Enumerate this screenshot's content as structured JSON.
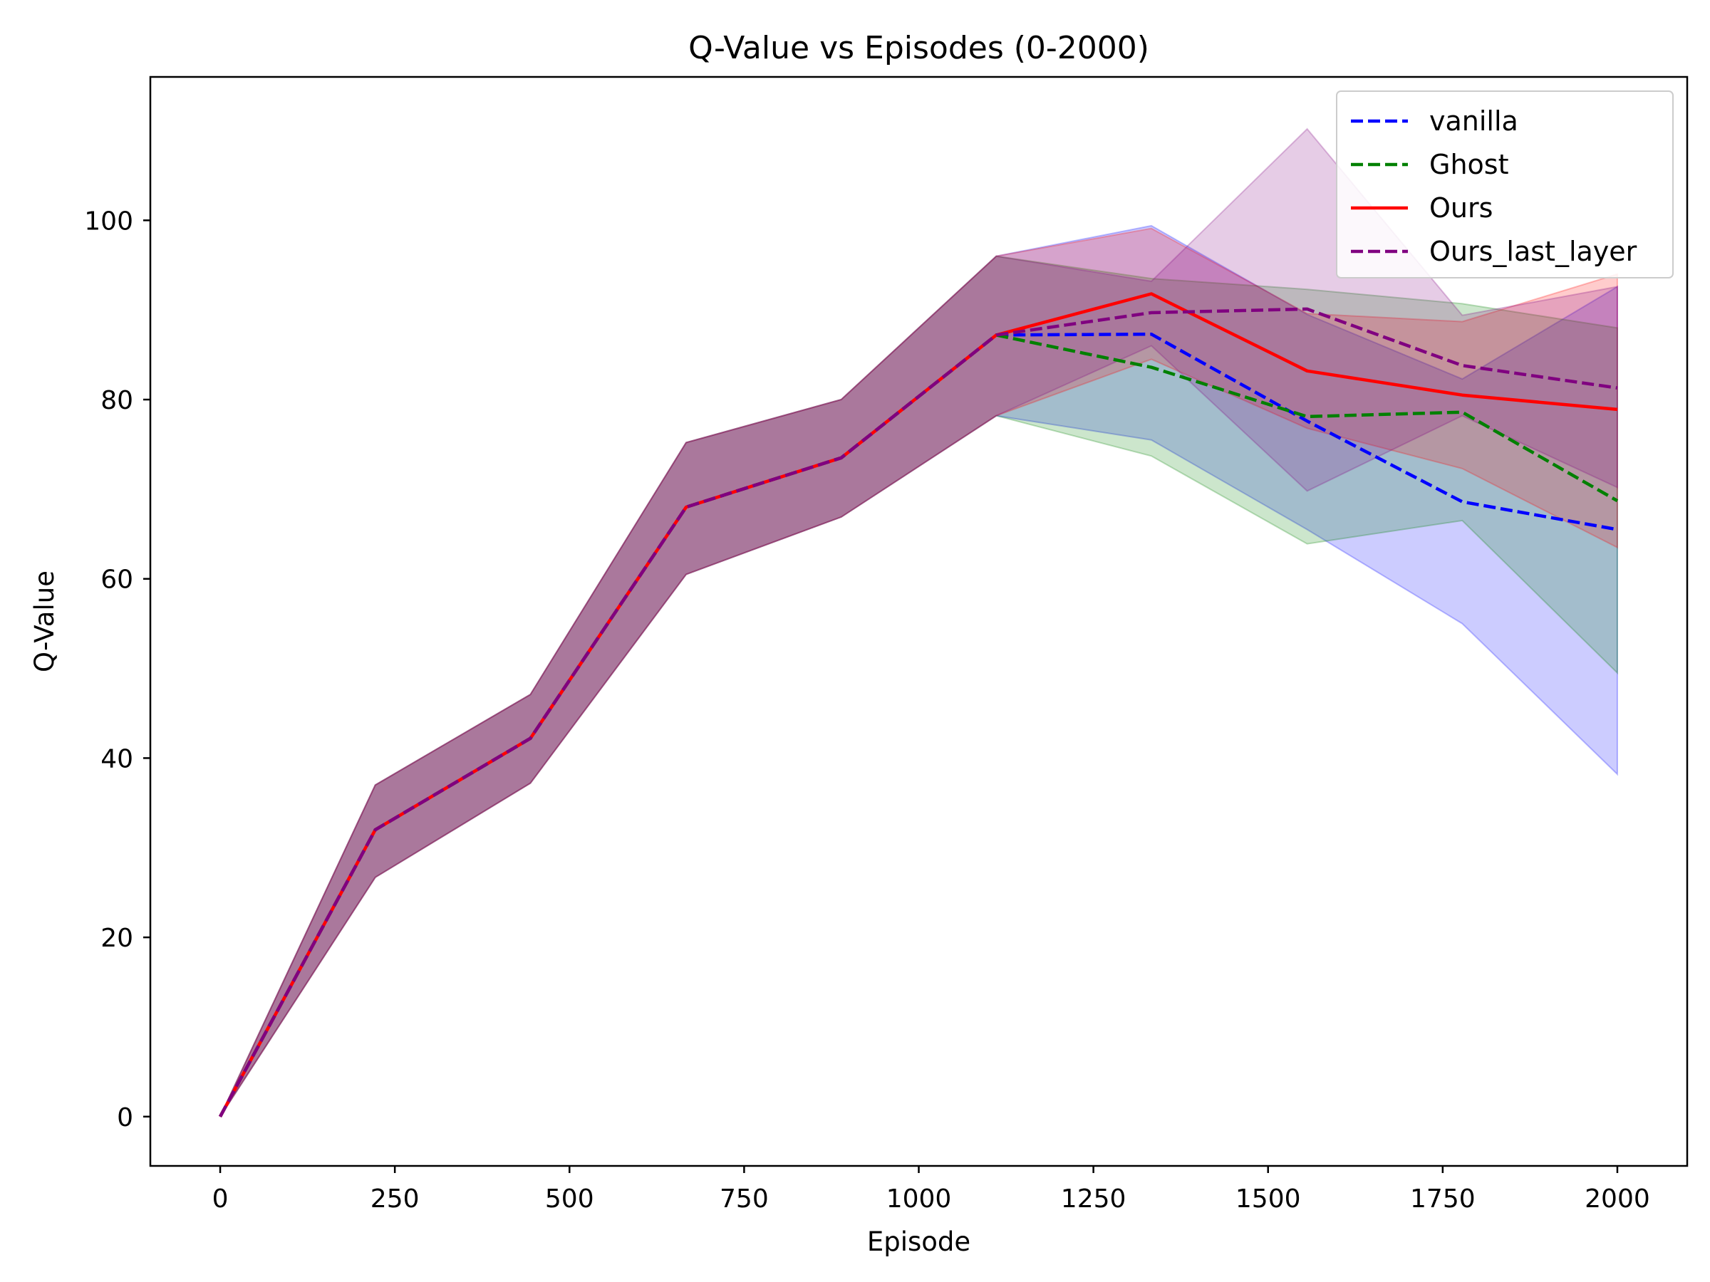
{
  "chart_data": {
    "type": "line",
    "title": "Q-Value vs Episodes (0-2000)",
    "xlabel": "Episode",
    "ylabel": "Q-Value",
    "xlim": [
      -100,
      2100
    ],
    "ylim": [
      -5.5,
      116
    ],
    "xticks": [
      0,
      250,
      500,
      750,
      1000,
      1250,
      1500,
      1750,
      2000
    ],
    "yticks": [
      0,
      20,
      40,
      60,
      80,
      100
    ],
    "grid": false,
    "legend_position": "top-right",
    "x": [
      0,
      222,
      444,
      667,
      889,
      1111,
      1333,
      1556,
      1778,
      2000
    ],
    "series": [
      {
        "name": "vanilla",
        "color": "#0000ff",
        "dash": "dashed",
        "values": [
          0,
          32,
          42.2,
          68,
          73.5,
          87.2,
          87.3,
          77.6,
          68.6,
          65.5
        ],
        "band_upper": [
          0,
          37,
          47.1,
          75.2,
          80,
          96,
          99.4,
          89.5,
          82.3,
          92.6
        ],
        "band_lower": [
          0,
          26.7,
          37.2,
          60.5,
          66.9,
          78.2,
          75.5,
          65.5,
          55.0,
          38.2
        ]
      },
      {
        "name": "Ghost",
        "color": "#008000",
        "dash": "dashed",
        "values": [
          0,
          32,
          42.2,
          68,
          73.5,
          87.2,
          83.6,
          78.1,
          78.6,
          68.7
        ],
        "band_upper": [
          0,
          37,
          47.1,
          75.2,
          80,
          96,
          93.5,
          92.3,
          90.7,
          88.0
        ],
        "band_lower": [
          0,
          26.7,
          37.2,
          60.5,
          66.9,
          78.2,
          73.7,
          63.9,
          66.5,
          49.5
        ]
      },
      {
        "name": "Ours",
        "color": "#ff0000",
        "dash": "solid",
        "values": [
          0,
          32,
          42.2,
          68,
          73.5,
          87.2,
          91.8,
          83.2,
          80.5,
          78.9
        ],
        "band_upper": [
          0,
          37,
          47.1,
          75.2,
          80,
          96,
          99.1,
          89.6,
          88.7,
          94.0
        ],
        "band_lower": [
          0,
          26.7,
          37.2,
          60.5,
          66.9,
          78.2,
          84.5,
          76.8,
          72.3,
          63.5
        ]
      },
      {
        "name": "Ours_last_layer",
        "color": "#800080",
        "dash": "dashed",
        "values": [
          0,
          32,
          42.2,
          68,
          73.5,
          87.2,
          89.7,
          90.1,
          83.8,
          81.3
        ],
        "band_upper": [
          0,
          37,
          47.1,
          75.2,
          80,
          96,
          93.2,
          110.2,
          89.4,
          92.6
        ],
        "band_lower": [
          0,
          26.7,
          37.2,
          60.5,
          66.9,
          78.2,
          86.0,
          69.8,
          78.2,
          70.2
        ]
      }
    ]
  }
}
